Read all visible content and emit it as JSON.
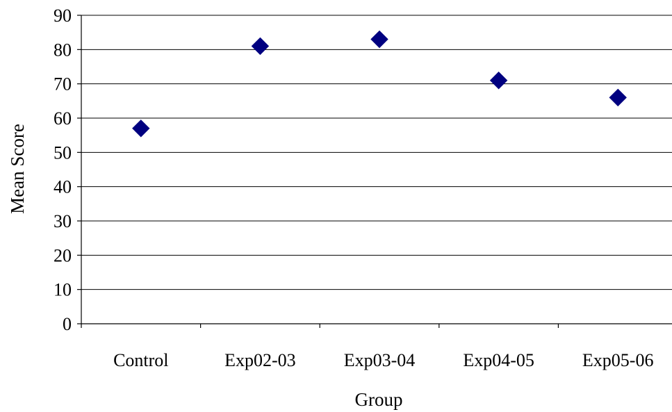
{
  "chart_data": {
    "type": "scatter",
    "marker": "diamond",
    "marker_color": "#000080",
    "grid": true,
    "xlabel": "Group",
    "ylabel": "Mean Score",
    "ylim": [
      0,
      90
    ],
    "yticks": [
      "0",
      "10",
      "20",
      "30",
      "40",
      "50",
      "60",
      "70",
      "80",
      "90"
    ],
    "categories": [
      "Control",
      "Exp02-03",
      "Exp03-04",
      "Exp04-05",
      "Exp05-06"
    ],
    "values": [
      57,
      81,
      83,
      71,
      66
    ]
  }
}
